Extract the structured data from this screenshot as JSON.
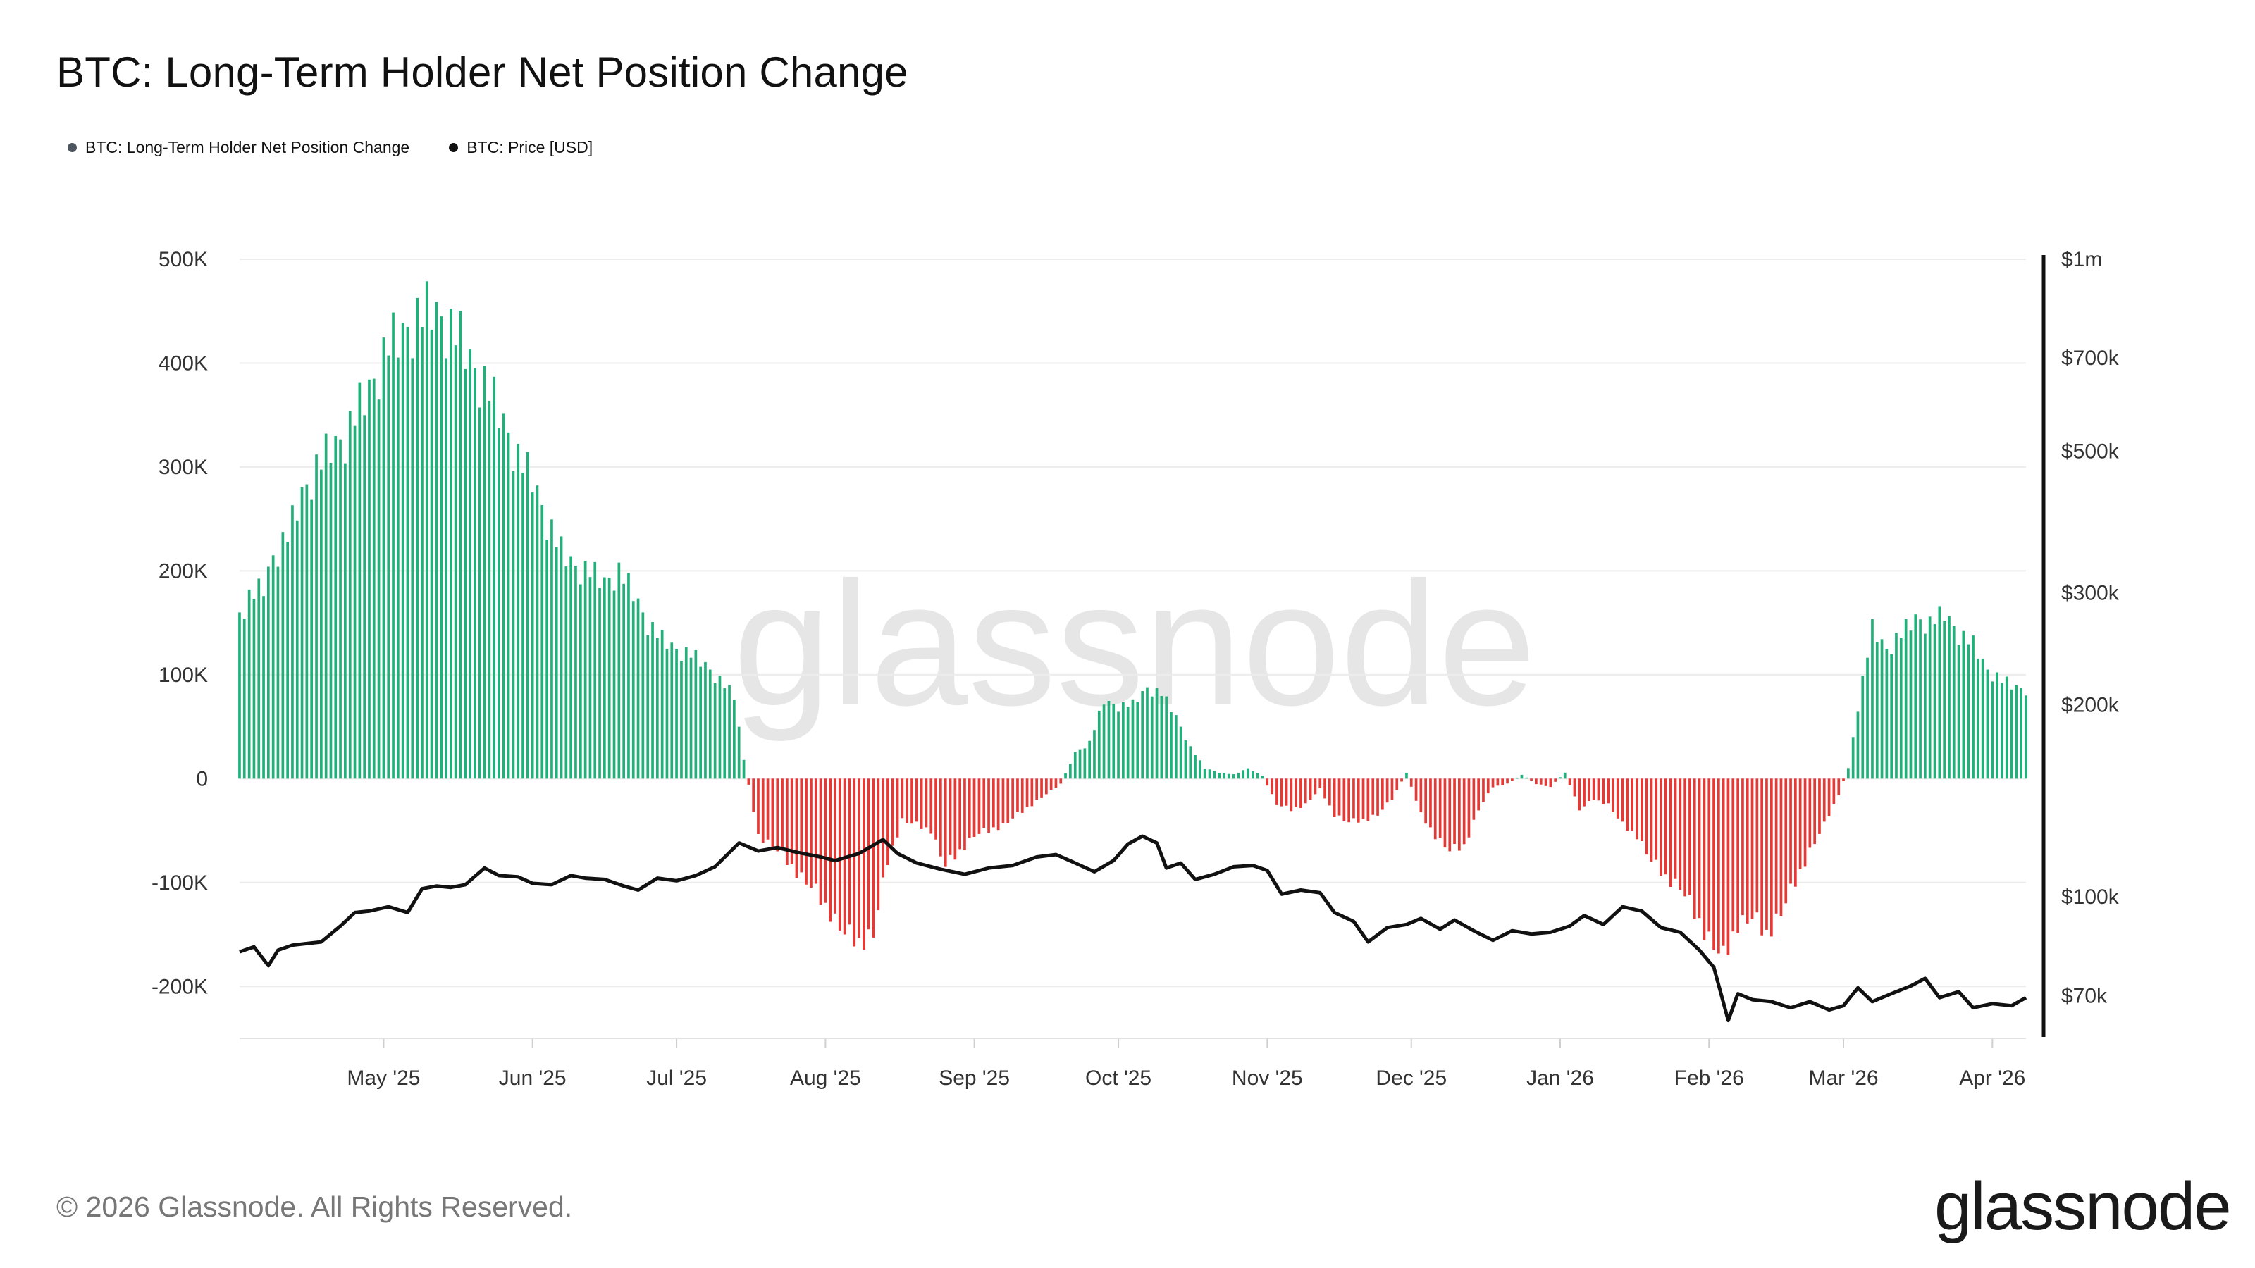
{
  "title": "BTC: Long-Term Holder Net Position Change",
  "legend": [
    {
      "label": "BTC: Long-Term Holder Net Position Change",
      "color": "#4d5560"
    },
    {
      "label": "BTC: Price [USD]",
      "color": "#111111"
    }
  ],
  "watermark": "glassnode",
  "footer": "© 2026 Glassnode. All Rights Reserved.",
  "brand": "glassnode",
  "colors": {
    "positive": "#21b07a",
    "negative": "#e53935",
    "price": "#111111",
    "grid": "#ececec"
  },
  "chart_data": {
    "type": "bar",
    "x_range": [
      "2025-04-01",
      "2026-04-08"
    ],
    "x_ticks": [
      {
        "label": "May '25",
        "date": "2025-05-01"
      },
      {
        "label": "Jun '25",
        "date": "2025-06-01"
      },
      {
        "label": "Jul '25",
        "date": "2025-07-01"
      },
      {
        "label": "Aug '25",
        "date": "2025-08-01"
      },
      {
        "label": "Sep '25",
        "date": "2025-09-01"
      },
      {
        "label": "Oct '25",
        "date": "2025-10-01"
      },
      {
        "label": "Nov '25",
        "date": "2025-11-01"
      },
      {
        "label": "Dec '25",
        "date": "2025-12-01"
      },
      {
        "label": "Jan '26",
        "date": "2026-01-01"
      },
      {
        "label": "Feb '26",
        "date": "2026-02-01"
      },
      {
        "label": "Mar '26",
        "date": "2026-03-01"
      },
      {
        "label": "Apr '26",
        "date": "2026-04-01"
      }
    ],
    "y_left": {
      "min": -250000,
      "max": 500000,
      "ticks": [
        {
          "v": 500000,
          "label": "500K"
        },
        {
          "v": 400000,
          "label": "400K"
        },
        {
          "v": 300000,
          "label": "300K"
        },
        {
          "v": 200000,
          "label": "200K"
        },
        {
          "v": 100000,
          "label": "100K"
        },
        {
          "v": 0,
          "label": "0"
        },
        {
          "v": -100000,
          "label": "-100K"
        },
        {
          "v": -200000,
          "label": "-200K"
        }
      ]
    },
    "y_right": {
      "scale": "log",
      "min": 60000,
      "max": 1000000,
      "ticks": [
        {
          "v": 1000000,
          "label": "$1m"
        },
        {
          "v": 700000,
          "label": "$700k"
        },
        {
          "v": 500000,
          "label": "$500k"
        },
        {
          "v": 300000,
          "label": "$300k"
        },
        {
          "v": 200000,
          "label": "$200k"
        },
        {
          "v": 100000,
          "label": "$100k"
        },
        {
          "v": 70000,
          "label": "$70k"
        }
      ]
    },
    "series": [
      {
        "name": "BTC: Long-Term Holder Net Position Change",
        "type": "bar",
        "points": [
          [
            "2025-04-01",
            160000
          ],
          [
            "2025-04-03",
            175000
          ],
          [
            "2025-04-06",
            185000
          ],
          [
            "2025-04-08",
            215000
          ],
          [
            "2025-04-11",
            235000
          ],
          [
            "2025-04-14",
            275000
          ],
          [
            "2025-04-17",
            300000
          ],
          [
            "2025-04-20",
            320000
          ],
          [
            "2025-04-23",
            330000
          ],
          [
            "2025-04-26",
            360000
          ],
          [
            "2025-04-29",
            385000
          ],
          [
            "2025-05-02",
            420000
          ],
          [
            "2025-05-05",
            430000
          ],
          [
            "2025-05-08",
            445000
          ],
          [
            "2025-05-11",
            455000
          ],
          [
            "2025-05-14",
            440000
          ],
          [
            "2025-05-17",
            425000
          ],
          [
            "2025-05-20",
            395000
          ],
          [
            "2025-05-23",
            375000
          ],
          [
            "2025-05-26",
            345000
          ],
          [
            "2025-05-29",
            310000
          ],
          [
            "2025-06-01",
            290000
          ],
          [
            "2025-06-04",
            250000
          ],
          [
            "2025-06-07",
            220000
          ],
          [
            "2025-06-10",
            205000
          ],
          [
            "2025-06-13",
            200000
          ],
          [
            "2025-06-16",
            190000
          ],
          [
            "2025-06-19",
            200000
          ],
          [
            "2025-06-22",
            180000
          ],
          [
            "2025-06-25",
            150000
          ],
          [
            "2025-06-28",
            135000
          ],
          [
            "2025-07-01",
            125000
          ],
          [
            "2025-07-04",
            120000
          ],
          [
            "2025-07-07",
            110000
          ],
          [
            "2025-07-10",
            95000
          ],
          [
            "2025-07-13",
            80000
          ],
          [
            "2025-07-15",
            18000
          ],
          [
            "2025-07-18",
            -55000
          ],
          [
            "2025-07-21",
            -65000
          ],
          [
            "2025-07-24",
            -80000
          ],
          [
            "2025-07-27",
            -95000
          ],
          [
            "2025-07-30",
            -110000
          ],
          [
            "2025-08-02",
            -130000
          ],
          [
            "2025-08-05",
            -150000
          ],
          [
            "2025-08-08",
            -158000
          ],
          [
            "2025-08-11",
            -150000
          ],
          [
            "2025-08-14",
            -80000
          ],
          [
            "2025-08-17",
            -40000
          ],
          [
            "2025-08-20",
            -45000
          ],
          [
            "2025-08-23",
            -50000
          ],
          [
            "2025-08-26",
            -85000
          ],
          [
            "2025-08-29",
            -70000
          ],
          [
            "2025-09-01",
            -55000
          ],
          [
            "2025-09-04",
            -50000
          ],
          [
            "2025-09-07",
            -45000
          ],
          [
            "2025-09-10",
            -35000
          ],
          [
            "2025-09-13",
            -25000
          ],
          [
            "2025-09-16",
            -15000
          ],
          [
            "2025-09-19",
            -5000
          ],
          [
            "2025-09-22",
            25000
          ],
          [
            "2025-09-25",
            35000
          ],
          [
            "2025-09-28",
            75000
          ],
          [
            "2025-10-01",
            70000
          ],
          [
            "2025-10-04",
            72000
          ],
          [
            "2025-10-07",
            88000
          ],
          [
            "2025-10-10",
            82000
          ],
          [
            "2025-10-13",
            60000
          ],
          [
            "2025-10-16",
            30000
          ],
          [
            "2025-10-19",
            10000
          ],
          [
            "2025-10-22",
            6000
          ],
          [
            "2025-10-25",
            4000
          ],
          [
            "2025-10-28",
            10000
          ],
          [
            "2025-10-31",
            3000
          ],
          [
            "2025-11-03",
            -25000
          ],
          [
            "2025-11-06",
            -30000
          ],
          [
            "2025-11-09",
            -25000
          ],
          [
            "2025-11-12",
            -10000
          ],
          [
            "2025-11-15",
            -35000
          ],
          [
            "2025-11-18",
            -42000
          ],
          [
            "2025-11-21",
            -40000
          ],
          [
            "2025-11-24",
            -35000
          ],
          [
            "2025-11-27",
            -20000
          ],
          [
            "2025-11-30",
            6000
          ],
          [
            "2025-12-03",
            -35000
          ],
          [
            "2025-12-06",
            -55000
          ],
          [
            "2025-12-09",
            -70000
          ],
          [
            "2025-12-12",
            -65000
          ],
          [
            "2025-12-15",
            -30000
          ],
          [
            "2025-12-18",
            -8000
          ],
          [
            "2025-12-21",
            -5000
          ],
          [
            "2025-12-24",
            4000
          ],
          [
            "2025-12-27",
            -5000
          ],
          [
            "2025-12-30",
            -8000
          ],
          [
            "2026-01-02",
            6000
          ],
          [
            "2026-01-05",
            -30000
          ],
          [
            "2026-01-08",
            -20000
          ],
          [
            "2026-01-11",
            -25000
          ],
          [
            "2026-01-14",
            -45000
          ],
          [
            "2026-01-17",
            -55000
          ],
          [
            "2026-01-20",
            -80000
          ],
          [
            "2026-01-23",
            -95000
          ],
          [
            "2026-01-26",
            -105000
          ],
          [
            "2026-01-29",
            -130000
          ],
          [
            "2026-02-01",
            -155000
          ],
          [
            "2026-02-04",
            -175000
          ],
          [
            "2026-02-07",
            -140000
          ],
          [
            "2026-02-10",
            -135000
          ],
          [
            "2026-02-13",
            -150000
          ],
          [
            "2026-02-16",
            -130000
          ],
          [
            "2026-02-19",
            -100000
          ],
          [
            "2026-02-22",
            -70000
          ],
          [
            "2026-02-25",
            -45000
          ],
          [
            "2026-02-28",
            -15000
          ],
          [
            "2026-03-02",
            10000
          ],
          [
            "2026-03-04",
            70000
          ],
          [
            "2026-03-07",
            145000
          ],
          [
            "2026-03-10",
            125000
          ],
          [
            "2026-03-13",
            140000
          ],
          [
            "2026-03-16",
            155000
          ],
          [
            "2026-03-19",
            150000
          ],
          [
            "2026-03-22",
            160000
          ],
          [
            "2026-03-25",
            140000
          ],
          [
            "2026-03-28",
            130000
          ],
          [
            "2026-03-31",
            105000
          ],
          [
            "2026-04-03",
            95000
          ],
          [
            "2026-04-06",
            88000
          ],
          [
            "2026-04-08",
            87000
          ]
        ]
      },
      {
        "name": "BTC: Price [USD]",
        "type": "line",
        "axis": "right",
        "points": [
          [
            "2025-04-01",
            82000
          ],
          [
            "2025-04-04",
            83500
          ],
          [
            "2025-04-07",
            78000
          ],
          [
            "2025-04-09",
            82500
          ],
          [
            "2025-04-12",
            84000
          ],
          [
            "2025-04-15",
            84500
          ],
          [
            "2025-04-18",
            85000
          ],
          [
            "2025-04-22",
            90000
          ],
          [
            "2025-04-25",
            94500
          ],
          [
            "2025-04-28",
            95000
          ],
          [
            "2025-05-02",
            96500
          ],
          [
            "2025-05-06",
            94500
          ],
          [
            "2025-05-09",
            103000
          ],
          [
            "2025-05-12",
            104000
          ],
          [
            "2025-05-15",
            103500
          ],
          [
            "2025-05-18",
            104500
          ],
          [
            "2025-05-22",
            111000
          ],
          [
            "2025-05-25",
            108000
          ],
          [
            "2025-05-29",
            107500
          ],
          [
            "2025-06-01",
            105000
          ],
          [
            "2025-06-05",
            104500
          ],
          [
            "2025-06-09",
            108000
          ],
          [
            "2025-06-12",
            107000
          ],
          [
            "2025-06-16",
            106500
          ],
          [
            "2025-06-20",
            104000
          ],
          [
            "2025-06-23",
            102500
          ],
          [
            "2025-06-27",
            107000
          ],
          [
            "2025-07-01",
            106000
          ],
          [
            "2025-07-05",
            108000
          ],
          [
            "2025-07-09",
            111500
          ],
          [
            "2025-07-14",
            121500
          ],
          [
            "2025-07-18",
            118000
          ],
          [
            "2025-07-22",
            119500
          ],
          [
            "2025-07-26",
            117500
          ],
          [
            "2025-07-31",
            115500
          ],
          [
            "2025-08-03",
            114000
          ],
          [
            "2025-08-08",
            117000
          ],
          [
            "2025-08-13",
            123000
          ],
          [
            "2025-08-16",
            117000
          ],
          [
            "2025-08-20",
            113000
          ],
          [
            "2025-08-25",
            110500
          ],
          [
            "2025-08-30",
            108500
          ],
          [
            "2025-09-04",
            111000
          ],
          [
            "2025-09-09",
            112000
          ],
          [
            "2025-09-14",
            115500
          ],
          [
            "2025-09-18",
            116500
          ],
          [
            "2025-09-22",
            113000
          ],
          [
            "2025-09-26",
            109500
          ],
          [
            "2025-09-30",
            114000
          ],
          [
            "2025-10-03",
            121000
          ],
          [
            "2025-10-06",
            124500
          ],
          [
            "2025-10-09",
            121500
          ],
          [
            "2025-10-11",
            111000
          ],
          [
            "2025-10-14",
            113000
          ],
          [
            "2025-10-17",
            106500
          ],
          [
            "2025-10-21",
            108500
          ],
          [
            "2025-10-25",
            111500
          ],
          [
            "2025-10-29",
            112000
          ],
          [
            "2025-11-01",
            110000
          ],
          [
            "2025-11-04",
            101000
          ],
          [
            "2025-11-08",
            102500
          ],
          [
            "2025-11-12",
            101500
          ],
          [
            "2025-11-15",
            94500
          ],
          [
            "2025-11-19",
            91500
          ],
          [
            "2025-11-22",
            85000
          ],
          [
            "2025-11-26",
            89500
          ],
          [
            "2025-11-30",
            90500
          ],
          [
            "2025-12-03",
            92500
          ],
          [
            "2025-12-07",
            89000
          ],
          [
            "2025-12-10",
            92000
          ],
          [
            "2025-12-14",
            88500
          ],
          [
            "2025-12-18",
            85500
          ],
          [
            "2025-12-22",
            88500
          ],
          [
            "2025-12-26",
            87500
          ],
          [
            "2025-12-30",
            88000
          ],
          [
            "2026-01-03",
            90000
          ],
          [
            "2026-01-06",
            93500
          ],
          [
            "2026-01-10",
            90500
          ],
          [
            "2026-01-14",
            96500
          ],
          [
            "2026-01-18",
            95000
          ],
          [
            "2026-01-22",
            89500
          ],
          [
            "2026-01-26",
            88000
          ],
          [
            "2026-01-30",
            82500
          ],
          [
            "2026-02-02",
            77500
          ],
          [
            "2026-02-05",
            64000
          ],
          [
            "2026-02-07",
            70500
          ],
          [
            "2026-02-10",
            69000
          ],
          [
            "2026-02-14",
            68500
          ],
          [
            "2026-02-18",
            67000
          ],
          [
            "2026-02-22",
            68500
          ],
          [
            "2026-02-26",
            66500
          ],
          [
            "2026-03-01",
            67500
          ],
          [
            "2026-03-04",
            72000
          ],
          [
            "2026-03-07",
            68500
          ],
          [
            "2026-03-11",
            70500
          ],
          [
            "2026-03-15",
            72500
          ],
          [
            "2026-03-18",
            74500
          ],
          [
            "2026-03-21",
            69500
          ],
          [
            "2026-03-25",
            71000
          ],
          [
            "2026-03-28",
            67000
          ],
          [
            "2026-04-01",
            68000
          ],
          [
            "2026-04-05",
            67500
          ],
          [
            "2026-04-08",
            69500
          ]
        ]
      }
    ],
    "grid": true,
    "legend_position": "top-left"
  }
}
